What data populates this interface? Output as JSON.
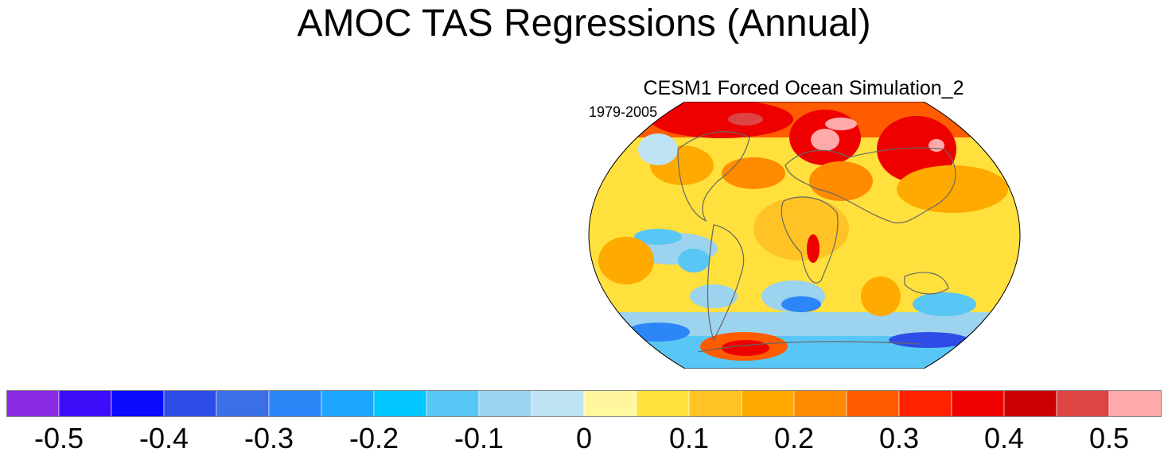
{
  "figure": {
    "title": "AMOC TAS Regressions (Annual)",
    "panel_title": "CESM1 Forced Ocean Simulation_2",
    "period": "1979-2005"
  },
  "colorbar": {
    "colors": [
      "#8a2be2",
      "#3d0dfa",
      "#0a0aff",
      "#2e4de6",
      "#3a6fe8",
      "#2c86f7",
      "#1ea6ff",
      "#00c5ff",
      "#59c7f5",
      "#9cd3ee",
      "#bde3f5",
      "#fff79e",
      "#ffe03d",
      "#ffc325",
      "#ffaa00",
      "#ff8c00",
      "#ff5b00",
      "#ff2200",
      "#ee0000",
      "#cc0000",
      "#dd4444",
      "#ffaaaa"
    ],
    "tick_labels": [
      "-0.5",
      "-0.4",
      "-0.3",
      "-0.2",
      "-0.1",
      "0",
      "0.1",
      "0.2",
      "0.3",
      "0.4",
      "0.5"
    ],
    "min": -0.5,
    "max": 0.5
  }
}
